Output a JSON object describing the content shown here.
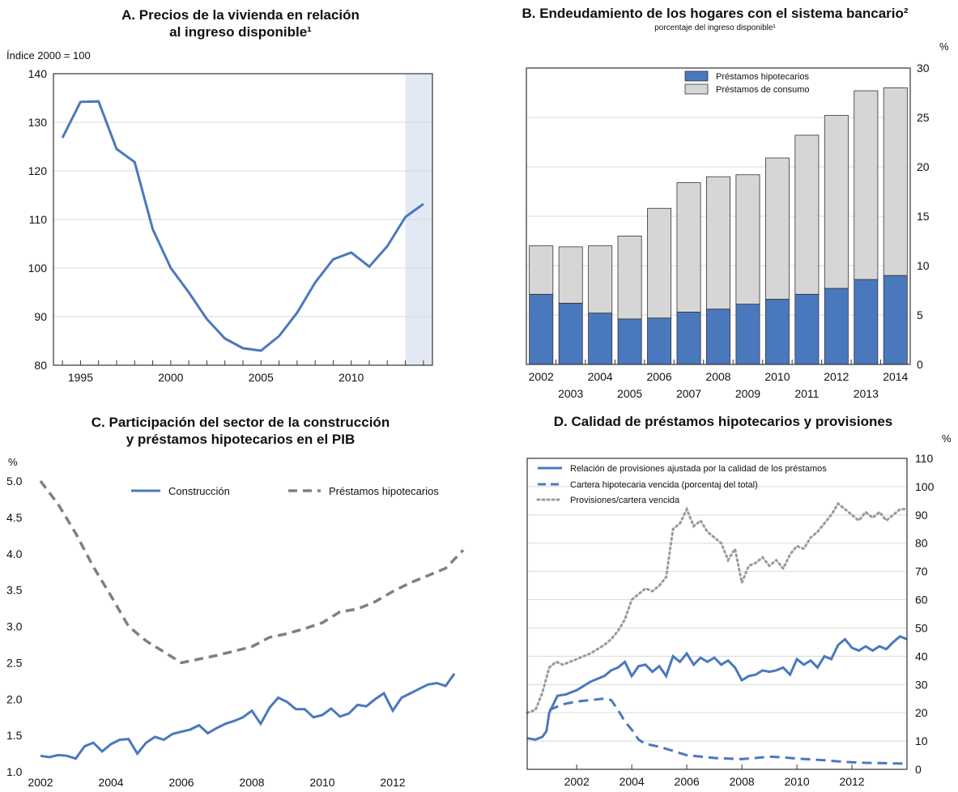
{
  "chart_data": [
    {
      "id": "A",
      "type": "line",
      "title_line1": "A. Precios de la vivienda en relación",
      "title_line2": "al ingreso disponible¹",
      "unit_label": "Índice 2000 = 100",
      "x": [
        1994,
        1995,
        1996,
        1997,
        1998,
        1999,
        2000,
        2001,
        2002,
        2003,
        2004,
        2005,
        2006,
        2007,
        2008,
        2009,
        2010,
        2011,
        2012,
        2013,
        2014
      ],
      "series": [
        {
          "values": [
            126.8,
            134.2,
            134.3,
            124.5,
            121.8,
            108,
            100,
            95,
            89.5,
            85.5,
            83.5,
            83,
            86,
            90.8,
            97,
            101.8,
            103.2,
            100.3,
            104.5,
            110.5,
            113.2
          ]
        }
      ],
      "xticks": [
        "1995",
        "2000",
        "2005",
        "2010"
      ],
      "xtick_values": [
        1995,
        2000,
        2005,
        2010
      ],
      "xlim": [
        1993.5,
        2014.5
      ],
      "ylim": [
        80,
        140
      ],
      "yticks": [
        "80",
        "90",
        "100",
        "110",
        "120",
        "130",
        "140"
      ],
      "projection_shade": [
        2013,
        2014.5
      ],
      "grid": true,
      "colors": {
        "line": "#4a78bd",
        "shade": "#e3e9f4"
      }
    },
    {
      "id": "B",
      "type": "bar",
      "title": "B. Endeudamiento de los hogares con el sistema bancario²",
      "subtitle": "porcentaje del ingreso disponible¹",
      "unit_label": "%",
      "categories": [
        "2002",
        "2003",
        "2004",
        "2005",
        "2006",
        "2007",
        "2008",
        "2009",
        "2010",
        "2011",
        "2012",
        "2013",
        "2014"
      ],
      "series": [
        {
          "name": "Préstamos hipotecarios",
          "values": [
            7.1,
            6.2,
            5.2,
            4.6,
            4.7,
            5.3,
            5.6,
            6.1,
            6.6,
            7.1,
            7.7,
            8.6,
            9.0
          ]
        },
        {
          "name": "Préstamos de consumo",
          "values": [
            4.9,
            5.7,
            6.8,
            8.4,
            11.1,
            13.1,
            13.4,
            13.1,
            14.3,
            16.1,
            17.5,
            19.1,
            19.0
          ]
        }
      ],
      "ylim": [
        0,
        30
      ],
      "yticks": [
        "0",
        "5",
        "10",
        "15",
        "20",
        "25",
        "30"
      ],
      "legend_position": "top",
      "grid": true,
      "colors": {
        "hipotecarios": "#4a78bd",
        "consumo": "#d6d6d6"
      }
    },
    {
      "id": "C",
      "type": "line",
      "title_line1": "C. Participación del sector de la construcción",
      "title_line2": "y préstamos hipotecarios en el PIB",
      "unit_label": "%",
      "xlim": [
        2002,
        2014
      ],
      "ylim": [
        1.0,
        5.0
      ],
      "yticks": [
        "1.0",
        "1.5",
        "2.0",
        "2.5",
        "3.0",
        "3.5",
        "4.0",
        "4.5",
        "5.0"
      ],
      "xticks": [
        "2002",
        "2004",
        "2006",
        "2008",
        "2010",
        "2012"
      ],
      "xtick_values": [
        2002,
        2004,
        2006,
        2008,
        2010,
        2012
      ],
      "series": [
        {
          "name": "Construcción",
          "x": [
            2002,
            2002.25,
            2002.5,
            2002.75,
            2003,
            2003.25,
            2003.5,
            2003.75,
            2004,
            2004.25,
            2004.5,
            2004.75,
            2005,
            2005.25,
            2005.5,
            2005.75,
            2006,
            2006.25,
            2006.5,
            2006.75,
            2007,
            2007.25,
            2007.5,
            2007.75,
            2008,
            2008.25,
            2008.5,
            2008.75,
            2009,
            2009.25,
            2009.5,
            2009.75,
            2010,
            2010.25,
            2010.5,
            2010.75,
            2011,
            2011.25,
            2011.5,
            2011.75,
            2012,
            2012.25,
            2012.5,
            2012.75,
            2013,
            2013.25,
            2013.5,
            2013.75
          ],
          "values": [
            1.22,
            1.2,
            1.23,
            1.22,
            1.18,
            1.35,
            1.4,
            1.28,
            1.38,
            1.44,
            1.45,
            1.25,
            1.4,
            1.48,
            1.44,
            1.52,
            1.55,
            1.58,
            1.64,
            1.53,
            1.6,
            1.66,
            1.7,
            1.75,
            1.84,
            1.66,
            1.88,
            2.02,
            1.96,
            1.86,
            1.86,
            1.75,
            1.78,
            1.87,
            1.76,
            1.8,
            1.92,
            1.9,
            2.0,
            2.08,
            1.84,
            2.02,
            2.08,
            2.14,
            2.2,
            2.22,
            2.18,
            2.35
          ]
        },
        {
          "name": "Préstamos hipotecarios",
          "x": [
            2002,
            2002.5,
            2003,
            2003.5,
            2004,
            2004.5,
            2005,
            2005.5,
            2006,
            2006.5,
            2007,
            2007.5,
            2008,
            2008.5,
            2009,
            2009.5,
            2010,
            2010.5,
            2011,
            2011.5,
            2012,
            2012.5,
            2013,
            2013.5,
            2014
          ],
          "values": [
            5.0,
            4.68,
            4.28,
            3.82,
            3.42,
            3.0,
            2.8,
            2.65,
            2.5,
            2.55,
            2.6,
            2.66,
            2.72,
            2.85,
            2.9,
            2.97,
            3.05,
            3.2,
            3.24,
            3.34,
            3.48,
            3.6,
            3.7,
            3.8,
            4.05
          ]
        }
      ],
      "legend_position": "top",
      "grid": false,
      "colors": {
        "construccion": "#4a78bd",
        "hipotecarios": "#808080"
      }
    },
    {
      "id": "D",
      "type": "line",
      "title": "D. Calidad de préstamos hipotecarios y provisiones",
      "unit_label": "%",
      "xlim": [
        2000.2,
        2014
      ],
      "ylim": [
        0,
        110
      ],
      "yticks": [
        "0",
        "10",
        "20",
        "30",
        "40",
        "50",
        "60",
        "70",
        "80",
        "90",
        "100",
        "110"
      ],
      "xticks": [
        "2002",
        "2004",
        "2006",
        "2008",
        "2010",
        "2012"
      ],
      "xtick_values": [
        2002,
        2004,
        2006,
        2008,
        2010,
        2012
      ],
      "series": [
        {
          "name": "Relación de provisiones ajustada por la calidad de los préstamos",
          "x": [
            2000.2,
            2000.5,
            2000.75,
            2000.9,
            2001,
            2001.3,
            2001.6,
            2002,
            2002.5,
            2003,
            2003.25,
            2003.5,
            2003.75,
            2004,
            2004.25,
            2004.5,
            2004.75,
            2005,
            2005.25,
            2005.5,
            2005.75,
            2006,
            2006.25,
            2006.5,
            2006.75,
            2007,
            2007.25,
            2007.5,
            2007.75,
            2008,
            2008.25,
            2008.5,
            2008.75,
            2009,
            2009.25,
            2009.5,
            2009.75,
            2010,
            2010.25,
            2010.5,
            2010.75,
            2011,
            2011.25,
            2011.5,
            2011.75,
            2012,
            2012.25,
            2012.5,
            2012.75,
            2013,
            2013.25,
            2013.5,
            2013.75,
            2014
          ],
          "values": [
            11,
            10.5,
            11.5,
            13.5,
            20,
            26,
            26.5,
            28,
            31,
            33,
            35,
            36,
            38,
            33,
            36.5,
            37,
            34.5,
            36.5,
            33,
            40,
            38,
            41,
            37,
            39.5,
            38,
            39.5,
            37,
            38.5,
            36,
            31.5,
            33,
            33.5,
            35,
            34.5,
            35,
            36,
            33.5,
            39,
            37,
            38.5,
            36,
            40,
            39,
            44,
            46,
            43,
            42,
            43.5,
            42,
            43.5,
            42.5,
            45,
            47,
            46
          ]
        },
        {
          "name": "Cartera hipotecaria vencida (porcentaj del total)",
          "x": [
            2001,
            2001.5,
            2002,
            2002.5,
            2003,
            2003.25,
            2003.5,
            2003.75,
            2004,
            2004.25,
            2004.5,
            2005,
            2005.5,
            2006,
            2006.5,
            2007,
            2007.5,
            2008,
            2008.5,
            2009,
            2009.5,
            2010,
            2010.5,
            2011,
            2011.5,
            2012,
            2012.5,
            2013,
            2013.5,
            2014
          ],
          "values": [
            21,
            23,
            24,
            24.5,
            25,
            24.5,
            21,
            17,
            14,
            10.5,
            9,
            8,
            6.5,
            5,
            4.5,
            4,
            3.8,
            3.6,
            4,
            4.5,
            4.2,
            3.8,
            3.5,
            3.2,
            2.8,
            2.5,
            2.3,
            2.2,
            2.1,
            2
          ]
        },
        {
          "name": "Provisiones/cartera vencida",
          "x": [
            2000.2,
            2000.5,
            2000.75,
            2001,
            2001.25,
            2001.5,
            2002,
            2002.5,
            2003,
            2003.25,
            2003.5,
            2003.75,
            2004,
            2004.25,
            2004.5,
            2004.75,
            2005,
            2005.25,
            2005.5,
            2005.75,
            2006,
            2006.25,
            2006.5,
            2006.75,
            2007,
            2007.25,
            2007.5,
            2007.75,
            2008,
            2008.25,
            2008.5,
            2008.75,
            2009,
            2009.25,
            2009.5,
            2009.75,
            2010,
            2010.25,
            2010.5,
            2010.75,
            2011,
            2011.25,
            2011.5,
            2011.75,
            2012,
            2012.25,
            2012.5,
            2012.75,
            2013,
            2013.25,
            2013.5,
            2013.75,
            2014
          ],
          "values": [
            20,
            21,
            27,
            36,
            38,
            37,
            39,
            41,
            44,
            46,
            49,
            53,
            60,
            62,
            64,
            63,
            65,
            68,
            85,
            87,
            92,
            86,
            88,
            84,
            82,
            80,
            74,
            78,
            66,
            72,
            73,
            75,
            72,
            74,
            71,
            76,
            79,
            78,
            82,
            84,
            87,
            90,
            94,
            92,
            90,
            88,
            91,
            89,
            91,
            88,
            90,
            92,
            92
          ]
        }
      ],
      "legend_position": "top-left",
      "grid": true,
      "colors": {
        "relacion": "#4a78bd",
        "cartera": "#4a78bd",
        "provisiones": "#9a9a9a"
      }
    }
  ]
}
